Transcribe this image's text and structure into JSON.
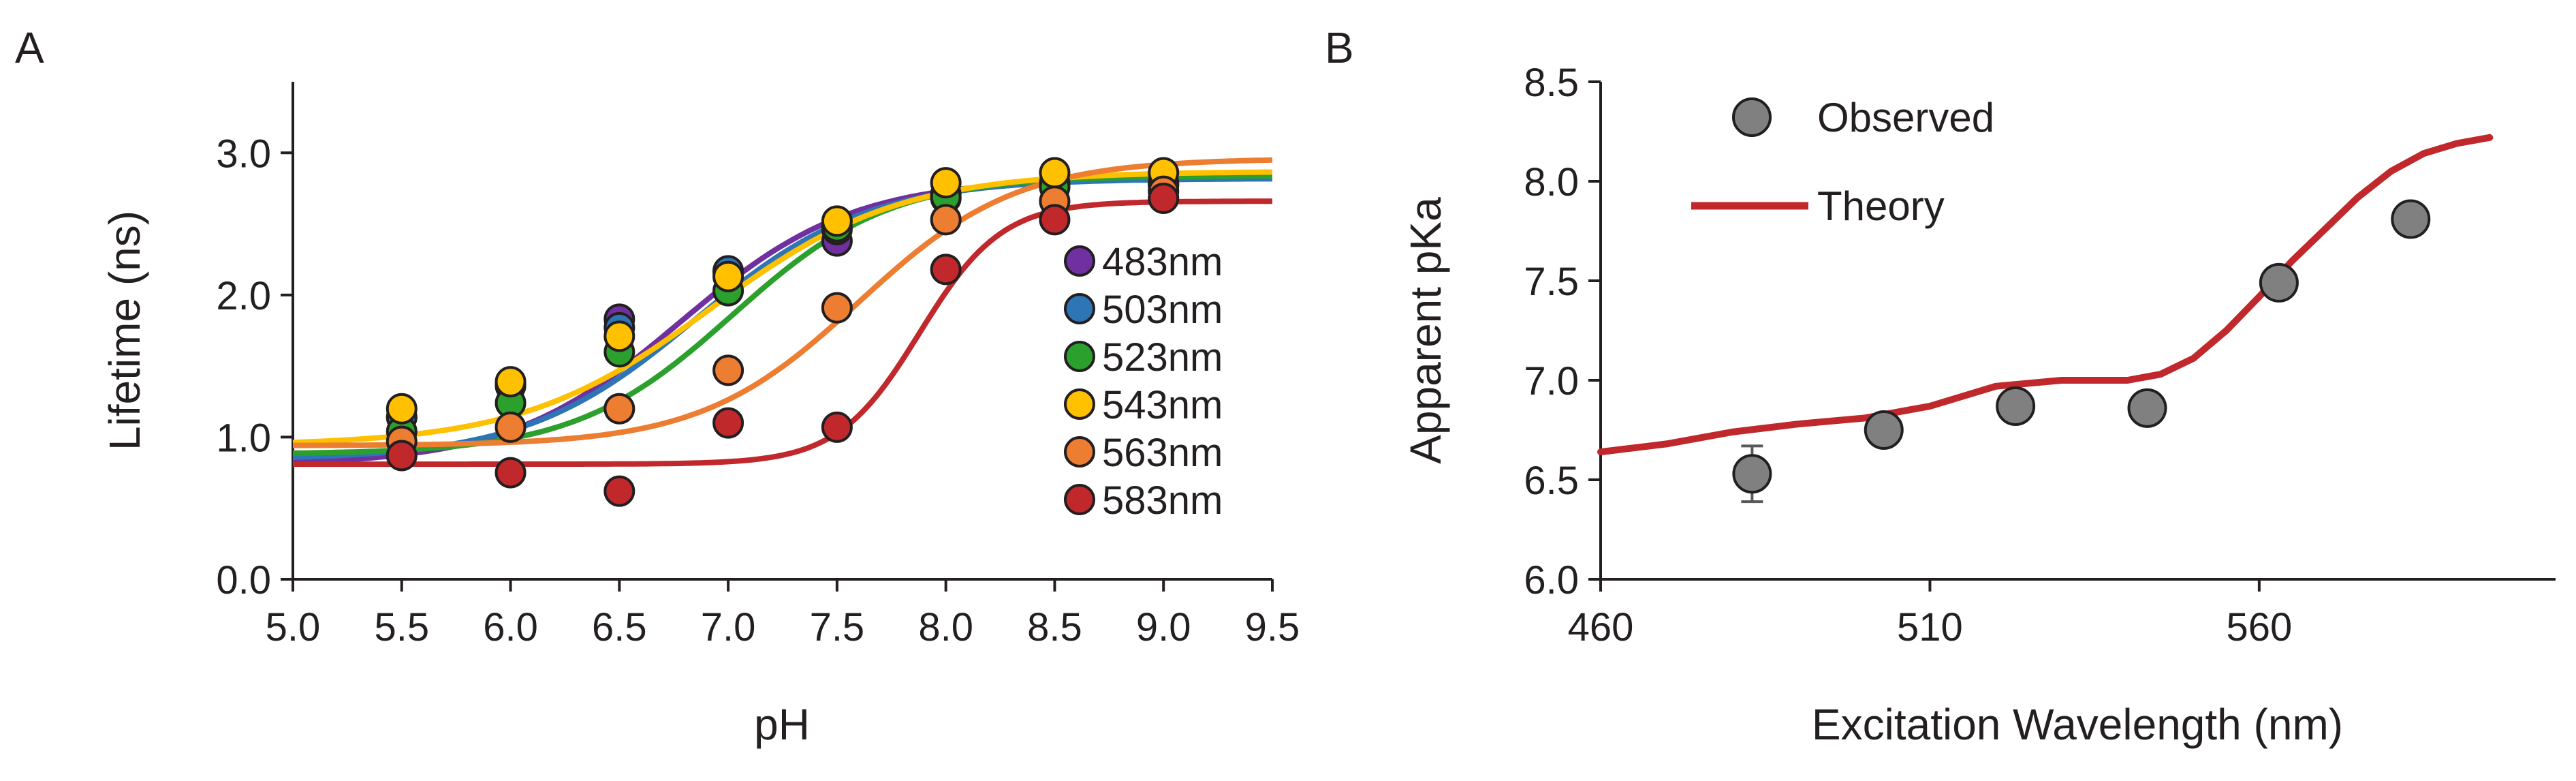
{
  "chart_data": [
    {
      "panel_label": "A",
      "type": "scatter",
      "title": "",
      "xlabel": "pH",
      "ylabel": "Lifetime (ns)",
      "xlim": [
        5.0,
        9.5
      ],
      "ylim": [
        0.0,
        3.5
      ],
      "x_ticks": [
        "5.0",
        "5.5",
        "6.0",
        "6.5",
        "7.0",
        "7.5",
        "8.0",
        "8.5",
        "9.0",
        "9.5"
      ],
      "y_ticks": [
        "0.0",
        "1.0",
        "2.0",
        "3.0"
      ],
      "legend_position": "right",
      "series": [
        {
          "name": "483nm",
          "color": "#7030a0",
          "x": [
            5.5,
            6.0,
            6.5,
            7.0,
            7.5,
            8.0,
            8.5,
            9.0
          ],
          "y": [
            1.14,
            1.36,
            1.83,
            2.16,
            2.38,
            2.68,
            2.76,
            2.77
          ],
          "fit": {
            "low": 0.8,
            "high": 2.82,
            "pk": 6.78,
            "n": 1.1
          }
        },
        {
          "name": "503nm",
          "color": "#2e75b6",
          "x": [
            5.5,
            6.0,
            6.5,
            7.0,
            7.5,
            8.0,
            8.5,
            9.0
          ],
          "y": [
            1.14,
            1.37,
            1.77,
            2.17,
            2.46,
            2.71,
            2.79,
            2.79
          ],
          "fit": {
            "low": 0.84,
            "high": 2.82,
            "pk": 6.85,
            "n": 1.1
          }
        },
        {
          "name": "523nm",
          "color": "#2ca02c",
          "x": [
            5.5,
            6.0,
            6.5,
            7.0,
            7.5,
            8.0,
            8.5,
            9.0
          ],
          "y": [
            1.04,
            1.24,
            1.6,
            2.03,
            2.48,
            2.69,
            2.76,
            2.78
          ],
          "fit": {
            "low": 0.88,
            "high": 2.84,
            "pk": 7.02,
            "n": 1.2
          }
        },
        {
          "name": "543nm",
          "color": "#ffc000",
          "x": [
            5.5,
            6.0,
            6.5,
            7.0,
            7.5,
            8.0,
            8.5,
            9.0
          ],
          "y": [
            1.2,
            1.39,
            1.71,
            2.13,
            2.52,
            2.79,
            2.86,
            2.86
          ],
          "fit": {
            "low": 0.94,
            "high": 2.87,
            "pk": 6.92,
            "n": 1.0
          }
        },
        {
          "name": "563nm",
          "color": "#ed7d31",
          "x": [
            5.5,
            6.0,
            6.5,
            7.0,
            7.5,
            8.0,
            8.5,
            9.0
          ],
          "y": [
            0.97,
            1.07,
            1.2,
            1.47,
            1.91,
            2.53,
            2.66,
            2.73
          ],
          "fit": {
            "low": 0.94,
            "high": 2.96,
            "pk": 7.6,
            "n": 1.2
          }
        },
        {
          "name": "583nm",
          "color": "#c0282c",
          "x": [
            5.5,
            6.0,
            6.5,
            7.0,
            7.5,
            8.0,
            8.5,
            9.0
          ],
          "y": [
            0.87,
            0.75,
            0.62,
            1.1,
            1.07,
            2.18,
            2.53,
            2.68
          ],
          "fit": {
            "low": 0.81,
            "high": 2.66,
            "pk": 7.88,
            "n": 2.3
          }
        }
      ]
    },
    {
      "panel_label": "B",
      "type": "scatter",
      "title": "",
      "xlabel": "Excitation Wavelength (nm)",
      "ylabel": "Apparent pKa",
      "xlim": [
        460,
        605
      ],
      "ylim": [
        6.0,
        8.5
      ],
      "x_ticks": [
        "460",
        "510",
        "560"
      ],
      "y_ticks": [
        "6.0",
        "6.5",
        "7.0",
        "7.5",
        "8.0",
        "8.5"
      ],
      "legend_position": "top-left",
      "legend": {
        "observed": "Observed",
        "theory": "Theory"
      },
      "observed": {
        "name": "Observed",
        "color": "#808080",
        "x": [
          483,
          503,
          523,
          543,
          563,
          583
        ],
        "y": [
          6.53,
          6.75,
          6.87,
          6.86,
          7.49,
          7.81
        ],
        "error": [
          0.14,
          0.03,
          0.03,
          0.03,
          0.03,
          0.07
        ]
      },
      "theory": {
        "name": "Theory",
        "color": "#c0282c",
        "x": [
          460,
          470,
          480,
          490,
          500,
          510,
          520,
          530,
          540,
          545,
          550,
          555,
          560,
          565,
          570,
          575,
          580,
          585,
          590,
          595
        ],
        "y": [
          6.64,
          6.68,
          6.74,
          6.78,
          6.81,
          6.87,
          6.97,
          7.0,
          7.0,
          7.03,
          7.11,
          7.25,
          7.42,
          7.6,
          7.76,
          7.92,
          8.05,
          8.14,
          8.19,
          8.22
        ]
      }
    }
  ]
}
